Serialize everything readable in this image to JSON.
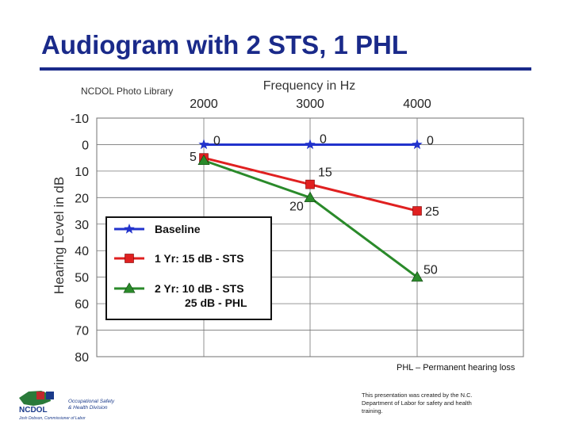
{
  "slide": {
    "title": "Audiogram with 2 STS, 1 PHL",
    "photo_credit": "NCDOL Photo Library",
    "footnote": "PHL – Permanent hearing loss",
    "disclaimer": "This presentation was created by the N.C. Department of Labor for safety and health training.",
    "logo_text": {
      "acronym": "NCDOL",
      "tagline_1": "Occupational Safety",
      "tagline_2": "& Health Division",
      "commissioner": "Josh Dobson, Commissioner of Labor"
    }
  },
  "colors": {
    "title": "#1a2a8a",
    "baseline": "#2233cc",
    "year1": "#e02020",
    "year2": "#2a8a2a"
  },
  "chart_data": {
    "type": "line",
    "title": "Frequency in Hz",
    "ylabel": "Hearing Level in dB",
    "x": [
      2000,
      3000,
      4000
    ],
    "x_ticks": [
      "2000",
      "3000",
      "4000"
    ],
    "x_position": "top",
    "ylim": [
      -10,
      80
    ],
    "y_ticks": [
      "-10",
      "0",
      "10",
      "20",
      "30",
      "40",
      "50",
      "60",
      "70",
      "80"
    ],
    "y_inverted": true,
    "grid": true,
    "series": [
      {
        "name": "Baseline",
        "marker": "star",
        "values": [
          0,
          0,
          0
        ],
        "labels": [
          "0",
          "0",
          "0"
        ]
      },
      {
        "name": "1 Yr: 15 dB - STS",
        "marker": "square",
        "values": [
          5,
          15,
          25
        ],
        "labels": [
          "5",
          "15",
          "25"
        ]
      },
      {
        "name": "2 Yr: 10 dB - STS",
        "name_line2": "25 dB - PHL",
        "marker": "triangle",
        "values": [
          6,
          20,
          50
        ],
        "labels": [
          "",
          "20",
          "50"
        ]
      }
    ],
    "legend_position": "bottom-left"
  }
}
